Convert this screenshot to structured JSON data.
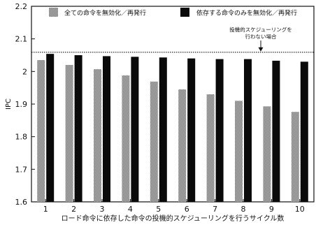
{
  "chart_data": {
    "type": "bar",
    "xlabel": "ロード命令に依存した命令の投機的スケジューリングを行うサイクル数",
    "ylabel": "IPC",
    "ylim": [
      1.6,
      2.2
    ],
    "yticks": [
      "1.6",
      "1.7",
      "1.8",
      "1.9",
      "2",
      "2.1",
      "2.2"
    ],
    "categories": [
      "1",
      "2",
      "3",
      "4",
      "5",
      "6",
      "7",
      "8",
      "9",
      "10"
    ],
    "series": [
      {
        "name": "全ての命令を無効化／再発行",
        "color": "#9a9a9a",
        "pattern": "dither",
        "values": [
          2.035,
          2.02,
          2.007,
          1.988,
          1.969,
          1.945,
          1.93,
          1.91,
          1.893,
          1.876
        ]
      },
      {
        "name": "依存する命令のみを無効化／再発行",
        "color": "#0a0a0a",
        "pattern": "solid",
        "values": [
          2.054,
          2.05,
          2.047,
          2.045,
          2.043,
          2.04,
          2.038,
          2.038,
          2.033,
          2.03
        ]
      }
    ],
    "reference_line": {
      "value": 2.059,
      "style": "dotted",
      "annotation": [
        "投機的スケジューリングを",
        "行わない場合"
      ]
    },
    "legend_position": "top",
    "grid": false
  }
}
